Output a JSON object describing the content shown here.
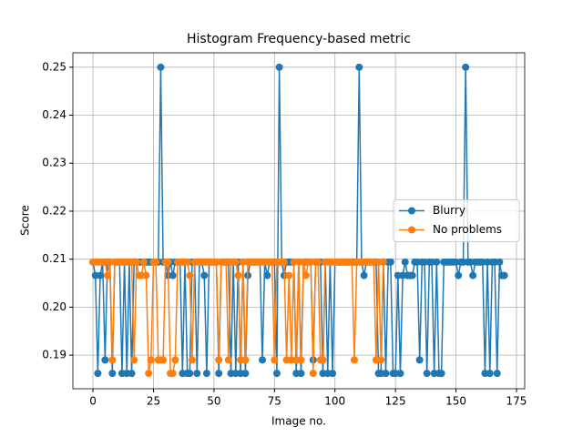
{
  "chart_data": {
    "type": "line",
    "title": "Histogram Frequency-based metric",
    "x_label": "Image no.",
    "y_label": "Score",
    "series": [
      {
        "name": "Blurry",
        "color": "#1f77b4",
        "x": [
          0,
          1,
          2,
          3,
          4,
          5,
          6,
          7,
          8,
          9,
          10,
          11,
          12,
          13,
          14,
          15,
          16,
          17,
          18,
          19,
          20,
          21,
          22,
          23,
          24,
          25,
          26,
          27,
          28,
          29,
          30,
          31,
          32,
          33,
          34,
          35,
          36,
          37,
          38,
          39,
          40,
          41,
          42,
          43,
          44,
          45,
          46,
          47,
          48,
          49,
          50,
          51,
          52,
          53,
          54,
          55,
          56,
          57,
          58,
          59,
          60,
          61,
          62,
          63,
          64,
          65,
          66,
          67,
          68,
          69,
          70,
          71,
          72,
          73,
          74,
          75,
          76,
          77,
          78,
          79,
          80,
          81,
          82,
          83,
          84,
          85,
          86,
          87,
          88,
          89,
          90,
          91,
          92,
          93,
          94,
          95,
          96,
          97,
          98,
          99,
          100,
          101,
          102,
          103,
          104,
          105,
          106,
          107,
          108,
          109,
          110,
          111,
          112,
          113,
          114,
          115,
          116,
          117,
          118,
          119,
          120,
          121,
          122,
          123,
          124,
          125,
          126,
          127,
          128,
          129,
          130,
          131,
          132,
          133,
          134,
          135,
          136,
          137,
          138,
          139,
          140,
          141,
          142,
          143,
          144,
          145,
          146,
          147,
          148,
          149,
          150,
          151,
          152,
          153,
          154,
          155,
          156,
          157,
          158,
          159,
          160,
          161,
          162,
          163,
          164,
          165,
          166,
          167,
          168,
          169,
          170
        ],
        "values": [
          0.2094,
          0.2066,
          0.1862,
          0.2066,
          0.2094,
          0.189,
          0.2094,
          0.2094,
          0.1862,
          0.2094,
          0.2094,
          0.2094,
          0.1862,
          0.2094,
          0.1862,
          0.2094,
          0.1862,
          0.2094,
          0.2094,
          0.2094,
          0.2094,
          0.2094,
          0.2094,
          0.2094,
          0.2094,
          0.2094,
          0.2094,
          0.2094,
          0.25,
          0.2094,
          0.2094,
          0.2066,
          0.2094,
          0.2066,
          0.2094,
          0.2094,
          0.2094,
          0.1862,
          0.2094,
          0.1862,
          0.1862,
          0.2094,
          0.2094,
          0.1862,
          0.2094,
          0.2094,
          0.2066,
          0.1862,
          0.2094,
          0.2094,
          0.2094,
          0.2094,
          0.1862,
          0.2094,
          0.2094,
          0.2094,
          0.2094,
          0.1862,
          0.2094,
          0.1862,
          0.2094,
          0.1862,
          0.2094,
          0.1862,
          0.2066,
          0.2094,
          0.2094,
          0.2094,
          0.2094,
          0.2094,
          0.189,
          0.2094,
          0.2066,
          0.2094,
          0.2094,
          0.2094,
          0.1862,
          0.25,
          0.2094,
          0.2066,
          0.2094,
          0.2094,
          0.2094,
          0.2094,
          0.1862,
          0.2094,
          0.1862,
          0.2094,
          0.2094,
          0.2094,
          0.2094,
          0.189,
          0.2094,
          0.2094,
          0.2094,
          0.1862,
          0.2094,
          0.1862,
          0.2094,
          0.1862,
          0.2094,
          0.2094,
          0.2094,
          0.2094,
          0.2094,
          0.2094,
          0.2094,
          0.2094,
          0.2094,
          0.2094,
          0.25,
          0.2094,
          0.2066,
          0.2094,
          0.2094,
          0.2094,
          0.2094,
          0.2094,
          0.1862,
          0.1862,
          0.2094,
          0.1862,
          0.2094,
          0.2094,
          0.1862,
          0.1862,
          0.2066,
          0.1862,
          0.2066,
          0.2094,
          0.2066,
          0.2066,
          0.2066,
          0.2094,
          0.2094,
          0.189,
          0.2094,
          0.2094,
          0.1862,
          0.2094,
          0.2094,
          0.1862,
          0.2094,
          0.1862,
          0.1862,
          0.2094,
          0.2094,
          0.2094,
          0.2094,
          0.2094,
          0.2094,
          0.2066,
          0.2094,
          0.2094,
          0.25,
          0.2094,
          0.2094,
          0.2066,
          0.2094,
          0.2094,
          0.2094,
          0.2094,
          0.1862,
          0.2094,
          0.1862,
          0.2094,
          0.2094,
          0.1862,
          0.2094,
          0.2066,
          0.2066
        ]
      },
      {
        "name": "No problems",
        "color": "#ff7f0e",
        "x": [
          0,
          1,
          2,
          3,
          4,
          5,
          6,
          7,
          8,
          9,
          10,
          11,
          12,
          13,
          14,
          15,
          16,
          17,
          18,
          19,
          20,
          21,
          22,
          23,
          24,
          25,
          26,
          27,
          28,
          29,
          30,
          31,
          32,
          33,
          34,
          35,
          36,
          37,
          38,
          39,
          40,
          41,
          42,
          43,
          44,
          45,
          46,
          47,
          48,
          49,
          50,
          51,
          52,
          53,
          54,
          55,
          56,
          57,
          58,
          59,
          60,
          61,
          62,
          63,
          64,
          65,
          66,
          67,
          68,
          69,
          70,
          71,
          72,
          73,
          74,
          75,
          76,
          77,
          78,
          79,
          80,
          81,
          82,
          83,
          84,
          85,
          86,
          87,
          88,
          89,
          90,
          91,
          92,
          93,
          94,
          95,
          96,
          97,
          98,
          99,
          100,
          101,
          102,
          103,
          104,
          105,
          106,
          107,
          108,
          109,
          110,
          111,
          112,
          113,
          114,
          115,
          116,
          117,
          118,
          119,
          120
        ],
        "values": [
          0.2094,
          0.2094,
          0.2094,
          0.2094,
          0.2094,
          0.2094,
          0.2066,
          0.2094,
          0.189,
          0.2094,
          0.2094,
          0.2094,
          0.2094,
          0.2094,
          0.2094,
          0.2094,
          0.2094,
          0.189,
          0.2094,
          0.2066,
          0.2066,
          0.2094,
          0.2066,
          0.1862,
          0.189,
          0.2094,
          0.2094,
          0.189,
          0.189,
          0.189,
          0.2094,
          0.2094,
          0.1862,
          0.1862,
          0.189,
          0.2094,
          0.2094,
          0.2094,
          0.2094,
          0.2094,
          0.2066,
          0.189,
          0.2094,
          0.2094,
          0.2094,
          0.2094,
          0.2094,
          0.2094,
          0.2094,
          0.2094,
          0.2094,
          0.2094,
          0.189,
          0.2094,
          0.2094,
          0.2094,
          0.189,
          0.2094,
          0.2094,
          0.2094,
          0.2066,
          0.189,
          0.2094,
          0.189,
          0.2094,
          0.2094,
          0.2094,
          0.2094,
          0.2094,
          0.2094,
          0.2094,
          0.2094,
          0.2094,
          0.2094,
          0.2094,
          0.189,
          0.2094,
          0.2094,
          0.2094,
          0.2094,
          0.189,
          0.2066,
          0.189,
          0.2094,
          0.189,
          0.2094,
          0.189,
          0.2094,
          0.2066,
          0.2094,
          0.2094,
          0.1862,
          0.2094,
          0.2094,
          0.189,
          0.189,
          0.2094,
          0.2094,
          0.2094,
          0.2094,
          0.2094,
          0.2094,
          0.2094,
          0.2094,
          0.2094,
          0.2094,
          0.2094,
          0.2094,
          0.189,
          0.2094,
          0.2094,
          0.2094,
          0.2094,
          0.2094,
          0.2094,
          0.2094,
          0.2094,
          0.189,
          0.2094,
          0.189,
          0.2094
        ]
      }
    ],
    "xlim": [
      -8.3,
      178.4
    ],
    "xticks": [
      0,
      25,
      50,
      75,
      100,
      125,
      150,
      175
    ],
    "ylim": [
      0.183,
      0.253
    ],
    "yticks": [
      0.19,
      {
        "value": 0.2,
        "label": "0.20"
      },
      0.21,
      0.22,
      0.23,
      0.24,
      0.25
    ],
    "grid": true,
    "legend": "center right"
  }
}
